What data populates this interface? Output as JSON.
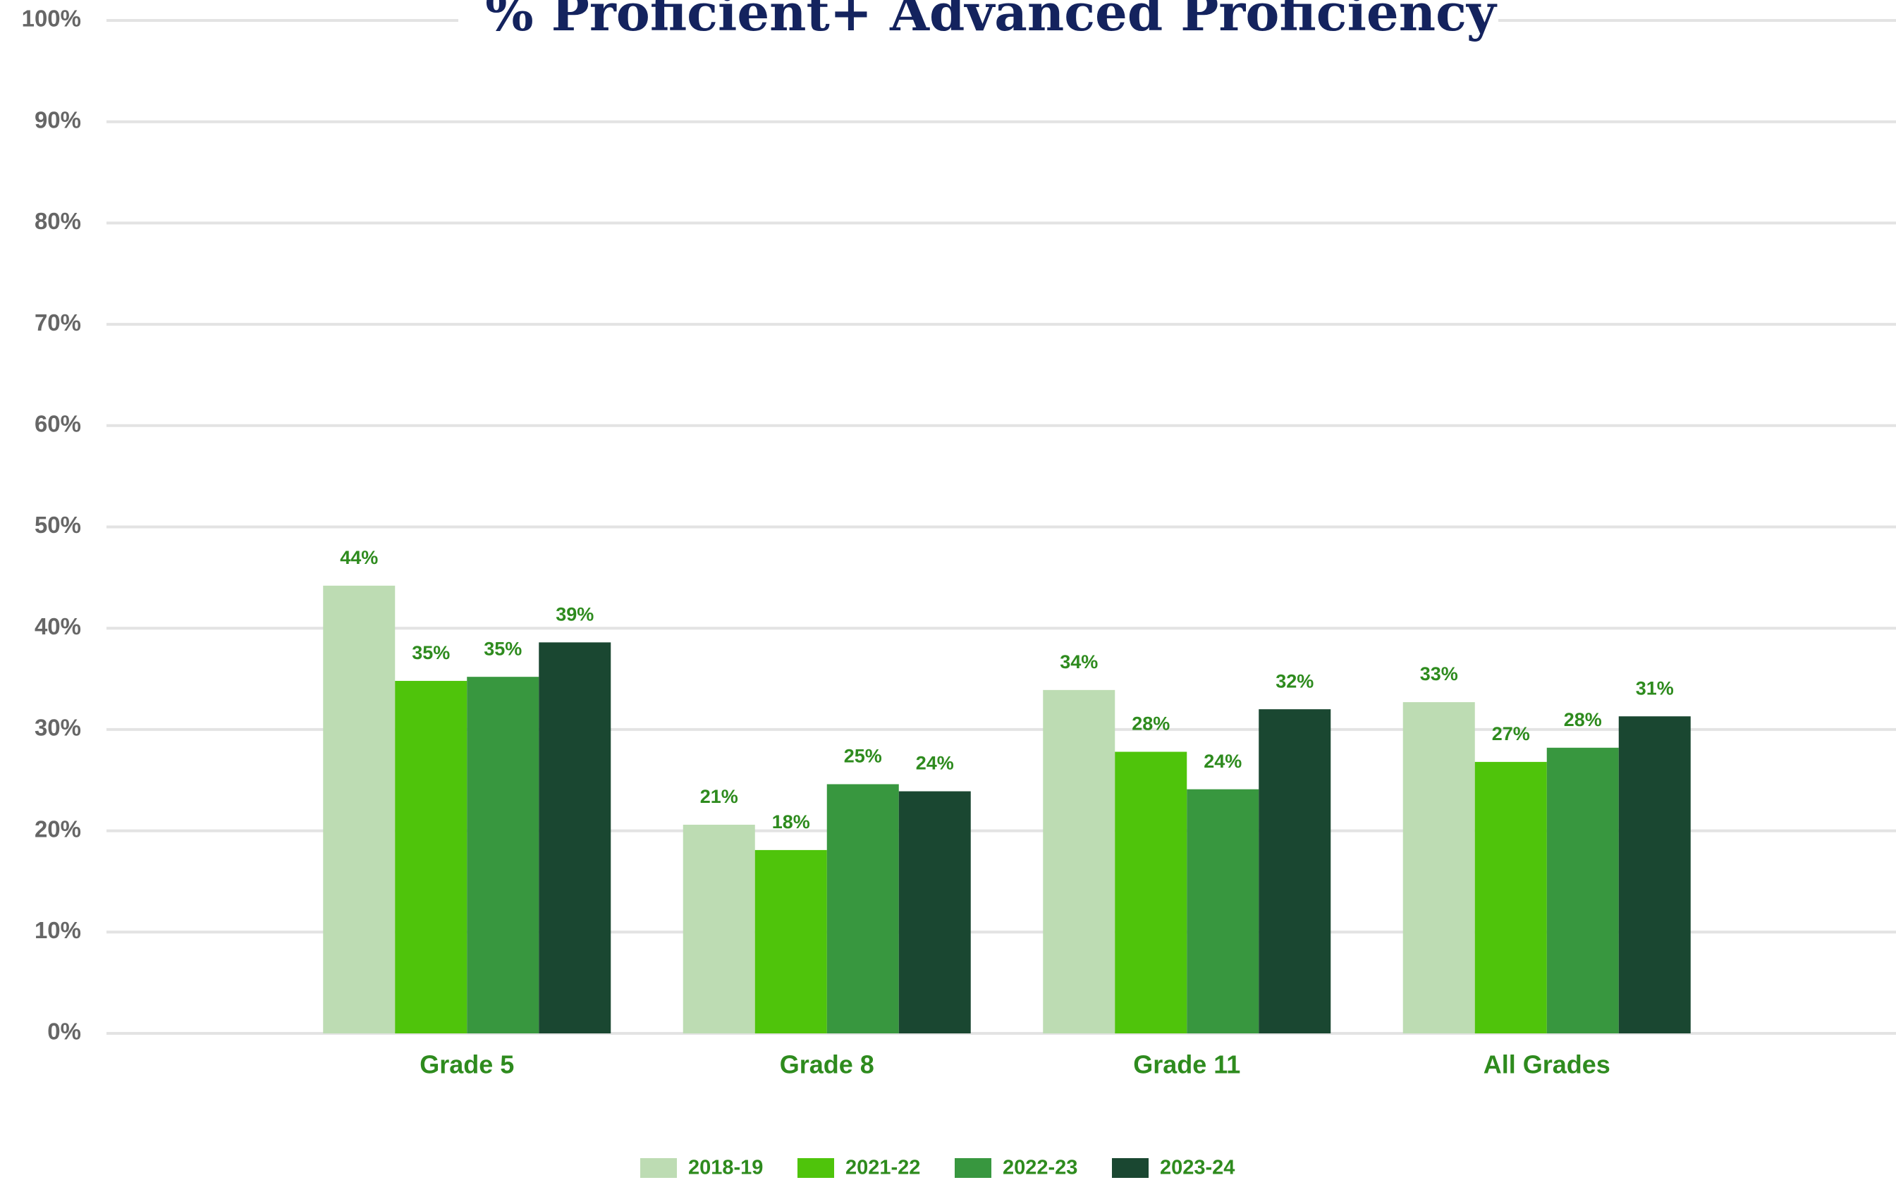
{
  "chart_data": {
    "type": "bar",
    "title": "% Proficient+ Advanced Proficiency",
    "categories": [
      "Grade 5",
      "Grade 8",
      "Grade 11",
      "All Grades"
    ],
    "series": [
      {
        "name": "2018-19",
        "color": "#bddcb3",
        "values": [
          44.2,
          20.6,
          33.9,
          32.7
        ],
        "value_labels": [
          "44%",
          "21%",
          "34%",
          "33%"
        ]
      },
      {
        "name": "2021-22",
        "color": "#4fc40b",
        "values": [
          34.8,
          18.1,
          27.8,
          26.8
        ],
        "value_labels": [
          "35%",
          "18%",
          "28%",
          "27%"
        ]
      },
      {
        "name": "2022-23",
        "color": "#38973f",
        "values": [
          35.2,
          24.6,
          24.1,
          28.2
        ],
        "value_labels": [
          "35%",
          "25%",
          "24%",
          "28%"
        ]
      },
      {
        "name": "2023-24",
        "color": "#1a4731",
        "values": [
          38.6,
          23.9,
          32.0,
          31.3
        ],
        "value_labels": [
          "39%",
          "24%",
          "32%",
          "31%"
        ]
      }
    ],
    "ylim": [
      0,
      100
    ],
    "yticks": [
      {
        "value": 0,
        "label": "0%"
      },
      {
        "value": 10,
        "label": "10%"
      },
      {
        "value": 20,
        "label": "20%"
      },
      {
        "value": 30,
        "label": "30%"
      },
      {
        "value": 40,
        "label": "40%"
      },
      {
        "value": 50,
        "label": "50%"
      },
      {
        "value": 60,
        "label": "60%"
      },
      {
        "value": 70,
        "label": "70%"
      },
      {
        "value": 80,
        "label": "80%"
      },
      {
        "value": 90,
        "label": "90%"
      },
      {
        "value": 100,
        "label": "100%"
      }
    ],
    "grid": true,
    "legend": "bottom"
  }
}
